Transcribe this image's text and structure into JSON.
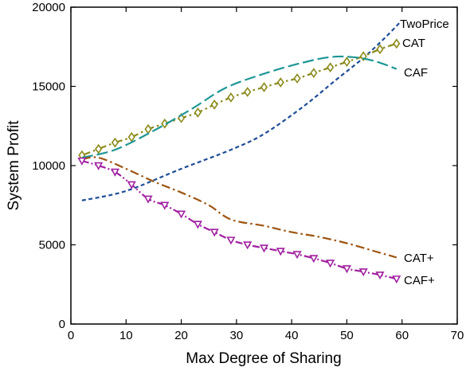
{
  "chart_data": {
    "type": "line",
    "title": "",
    "xlabel": "Max Degree of Sharing",
    "ylabel": "System Profit",
    "xlim": [
      0,
      70
    ],
    "ylim": [
      0,
      20000
    ],
    "xticks": [
      0,
      10,
      20,
      30,
      40,
      50,
      60,
      70
    ],
    "yticks": [
      0,
      5000,
      10000,
      15000,
      20000
    ],
    "grid": false,
    "legend": "inline labels at line ends (right)",
    "series": [
      {
        "name": "TwoPrice",
        "color": "#1f4e96",
        "dash": "short-dash",
        "marker": "none",
        "x": [
          2,
          10,
          20,
          29,
          35,
          42,
          48,
          53,
          57,
          59.5
        ],
        "y": [
          7800,
          8400,
          9800,
          11000,
          12000,
          13700,
          15400,
          16800,
          18100,
          19000
        ]
      },
      {
        "name": "CAT",
        "color": "#8a8a1a",
        "dash": "dash-dot",
        "marker": "diamond",
        "x": [
          2,
          5,
          8,
          11,
          14,
          17,
          20,
          23,
          26,
          29,
          32,
          35,
          38,
          41,
          44,
          47,
          50,
          53,
          56,
          59
        ],
        "y": [
          10650,
          11050,
          11450,
          11800,
          12300,
          12650,
          13000,
          13350,
          13850,
          14300,
          14650,
          14950,
          15250,
          15500,
          15850,
          16200,
          16550,
          16900,
          17350,
          17700
        ]
      },
      {
        "name": "CAF",
        "color": "#1f9696",
        "dash": "long-dash",
        "marker": "none",
        "x": [
          2,
          8,
          15,
          22,
          28,
          35,
          42,
          47,
          51,
          55,
          59
        ],
        "y": [
          10500,
          11000,
          12200,
          13600,
          14900,
          15800,
          16500,
          16850,
          16850,
          16600,
          16100
        ]
      },
      {
        "name": "CAT+",
        "color": "#9e5512",
        "dash": "dash-dot",
        "marker": "none",
        "x": [
          2,
          5,
          10,
          15,
          20,
          25,
          29,
          35,
          40,
          45,
          50,
          55,
          59
        ],
        "y": [
          10400,
          10500,
          9800,
          9000,
          8300,
          7500,
          6600,
          6200,
          5800,
          5500,
          5100,
          4600,
          4200
        ]
      },
      {
        "name": "CAF+",
        "color": "#a020a0",
        "dash": "dash-dot-dot",
        "marker": "triangle-down",
        "x": [
          2,
          5,
          8,
          11,
          14,
          17,
          20,
          23,
          26,
          29,
          32,
          35,
          38,
          41,
          44,
          47,
          50,
          53,
          56,
          59
        ],
        "y": [
          10300,
          10000,
          9600,
          8800,
          7900,
          7500,
          6950,
          6300,
          5800,
          5300,
          5000,
          4800,
          4600,
          4400,
          4150,
          3850,
          3500,
          3300,
          3100,
          2850
        ]
      }
    ]
  }
}
